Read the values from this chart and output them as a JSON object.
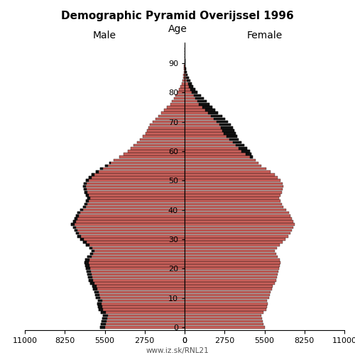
{
  "title": "Demographic Pyramid Overijssel 1996",
  "male_label": "Male",
  "female_label": "Female",
  "age_label": "Age",
  "footnote": "www.iz.sk/RNL21",
  "xlim": 11000,
  "xticks_left": [
    11000,
    8250,
    5500,
    2750,
    0
  ],
  "xticks_right": [
    0,
    2750,
    5500,
    8250,
    11000
  ],
  "bar_color": "#C8605A",
  "bar_color_dark": "#111111",
  "ages": [
    0,
    1,
    2,
    3,
    4,
    5,
    6,
    7,
    8,
    9,
    10,
    11,
    12,
    13,
    14,
    15,
    16,
    17,
    18,
    19,
    20,
    21,
    22,
    23,
    24,
    25,
    26,
    27,
    28,
    29,
    30,
    31,
    32,
    33,
    34,
    35,
    36,
    37,
    38,
    39,
    40,
    41,
    42,
    43,
    44,
    45,
    46,
    47,
    48,
    49,
    50,
    51,
    52,
    53,
    54,
    55,
    56,
    57,
    58,
    59,
    60,
    61,
    62,
    63,
    64,
    65,
    66,
    67,
    68,
    69,
    70,
    71,
    72,
    73,
    74,
    75,
    76,
    77,
    78,
    79,
    80,
    81,
    82,
    83,
    84,
    85,
    86,
    87,
    88,
    89,
    90,
    91,
    92,
    93,
    94,
    95
  ],
  "male": [
    5800,
    5750,
    5700,
    5650,
    5600,
    5750,
    5900,
    5950,
    6000,
    5950,
    6100,
    6150,
    6200,
    6300,
    6350,
    6500,
    6600,
    6650,
    6700,
    6750,
    6800,
    6850,
    6900,
    6850,
    6700,
    6500,
    6400,
    6550,
    6800,
    7000,
    7200,
    7400,
    7500,
    7600,
    7700,
    7800,
    7700,
    7600,
    7500,
    7400,
    7200,
    7000,
    6900,
    6800,
    6700,
    6800,
    6900,
    6950,
    7000,
    6950,
    6800,
    6600,
    6400,
    6100,
    5800,
    5500,
    5200,
    4900,
    4500,
    4200,
    3900,
    3700,
    3500,
    3300,
    3100,
    2900,
    2700,
    2600,
    2500,
    2400,
    2200,
    2000,
    1800,
    1600,
    1400,
    1200,
    1000,
    900,
    750,
    650,
    500,
    400,
    300,
    220,
    160,
    120,
    80,
    50,
    35,
    25,
    15,
    8,
    5,
    2,
    1,
    0
  ],
  "female": [
    5500,
    5450,
    5400,
    5350,
    5300,
    5450,
    5600,
    5650,
    5700,
    5650,
    5800,
    5850,
    5900,
    6000,
    6050,
    6200,
    6300,
    6350,
    6400,
    6450,
    6500,
    6550,
    6600,
    6550,
    6400,
    6300,
    6200,
    6350,
    6550,
    6750,
    6950,
    7150,
    7300,
    7400,
    7500,
    7600,
    7500,
    7400,
    7300,
    7200,
    7000,
    6800,
    6700,
    6600,
    6500,
    6600,
    6700,
    6750,
    6800,
    6750,
    6600,
    6400,
    6200,
    5900,
    5600,
    5300,
    5100,
    4900,
    4700,
    4600,
    4500,
    4300,
    4100,
    3900,
    3700,
    3600,
    3500,
    3400,
    3300,
    3200,
    3000,
    2800,
    2600,
    2300,
    2100,
    1900,
    1700,
    1500,
    1300,
    1100,
    900,
    750,
    600,
    480,
    380,
    290,
    210,
    150,
    100,
    70,
    45,
    28,
    17,
    10,
    5,
    3
  ]
}
